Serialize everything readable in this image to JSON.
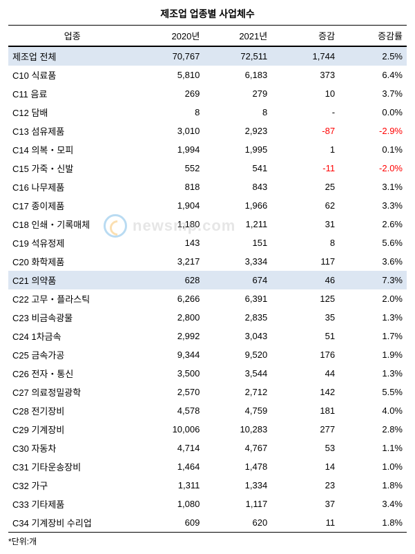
{
  "title": "제조업 업종별 사업체수",
  "headers": {
    "category": "업종",
    "y2020": "2020년",
    "y2021": "2021년",
    "diff": "증감",
    "rate": "증감률"
  },
  "rows": [
    {
      "cat": "제조업 전체",
      "y20": "70,767",
      "y21": "72,511",
      "diff": "1,744",
      "rate": "2.5%",
      "hl": true,
      "negDiff": false,
      "negRate": false
    },
    {
      "cat": "C10 식료품",
      "y20": "5,810",
      "y21": "6,183",
      "diff": "373",
      "rate": "6.4%",
      "hl": false,
      "negDiff": false,
      "negRate": false
    },
    {
      "cat": "C11 음료",
      "y20": "269",
      "y21": "279",
      "diff": "10",
      "rate": "3.7%",
      "hl": false,
      "negDiff": false,
      "negRate": false
    },
    {
      "cat": "C12 담배",
      "y20": "8",
      "y21": "8",
      "diff": "-",
      "rate": "0.0%",
      "hl": false,
      "negDiff": false,
      "negRate": false
    },
    {
      "cat": "C13 섬유제품",
      "y20": "3,010",
      "y21": "2,923",
      "diff": "-87",
      "rate": "-2.9%",
      "hl": false,
      "negDiff": true,
      "negRate": true
    },
    {
      "cat": "C14 의복・모피",
      "y20": "1,994",
      "y21": "1,995",
      "diff": "1",
      "rate": "0.1%",
      "hl": false,
      "negDiff": false,
      "negRate": false
    },
    {
      "cat": "C15 가죽・신발",
      "y20": "552",
      "y21": "541",
      "diff": "-11",
      "rate": "-2.0%",
      "hl": false,
      "negDiff": true,
      "negRate": true
    },
    {
      "cat": "C16 나무제품",
      "y20": "818",
      "y21": "843",
      "diff": "25",
      "rate": "3.1%",
      "hl": false,
      "negDiff": false,
      "negRate": false
    },
    {
      "cat": "C17 종이제품",
      "y20": "1,904",
      "y21": "1,966",
      "diff": "62",
      "rate": "3.3%",
      "hl": false,
      "negDiff": false,
      "negRate": false
    },
    {
      "cat": "C18 인쇄・기록매체",
      "y20": "1,180",
      "y21": "1,211",
      "diff": "31",
      "rate": "2.6%",
      "hl": false,
      "negDiff": false,
      "negRate": false
    },
    {
      "cat": "C19 석유정제",
      "y20": "143",
      "y21": "151",
      "diff": "8",
      "rate": "5.6%",
      "hl": false,
      "negDiff": false,
      "negRate": false
    },
    {
      "cat": "C20 화학제품",
      "y20": "3,217",
      "y21": "3,334",
      "diff": "117",
      "rate": "3.6%",
      "hl": false,
      "negDiff": false,
      "negRate": false
    },
    {
      "cat": "C21 의약품",
      "y20": "628",
      "y21": "674",
      "diff": "46",
      "rate": "7.3%",
      "hl": true,
      "negDiff": false,
      "negRate": false
    },
    {
      "cat": "C22 고무・플라스틱",
      "y20": "6,266",
      "y21": "6,391",
      "diff": "125",
      "rate": "2.0%",
      "hl": false,
      "negDiff": false,
      "negRate": false
    },
    {
      "cat": "C23 비금속광물",
      "y20": "2,800",
      "y21": "2,835",
      "diff": "35",
      "rate": "1.3%",
      "hl": false,
      "negDiff": false,
      "negRate": false
    },
    {
      "cat": "C24 1차금속",
      "y20": "2,992",
      "y21": "3,043",
      "diff": "51",
      "rate": "1.7%",
      "hl": false,
      "negDiff": false,
      "negRate": false
    },
    {
      "cat": "C25 금속가공",
      "y20": "9,344",
      "y21": "9,520",
      "diff": "176",
      "rate": "1.9%",
      "hl": false,
      "negDiff": false,
      "negRate": false
    },
    {
      "cat": "C26 전자・통신",
      "y20": "3,500",
      "y21": "3,544",
      "diff": "44",
      "rate": "1.3%",
      "hl": false,
      "negDiff": false,
      "negRate": false
    },
    {
      "cat": "C27 의료정밀광학",
      "y20": "2,570",
      "y21": "2,712",
      "diff": "142",
      "rate": "5.5%",
      "hl": false,
      "negDiff": false,
      "negRate": false
    },
    {
      "cat": "C28 전기장비",
      "y20": "4,578",
      "y21": "4,759",
      "diff": "181",
      "rate": "4.0%",
      "hl": false,
      "negDiff": false,
      "negRate": false
    },
    {
      "cat": "C29 기계장비",
      "y20": "10,006",
      "y21": "10,283",
      "diff": "277",
      "rate": "2.8%",
      "hl": false,
      "negDiff": false,
      "negRate": false
    },
    {
      "cat": "C30 자동차",
      "y20": "4,714",
      "y21": "4,767",
      "diff": "53",
      "rate": "1.1%",
      "hl": false,
      "negDiff": false,
      "negRate": false
    },
    {
      "cat": "C31 기타운송장비",
      "y20": "1,464",
      "y21": "1,478",
      "diff": "14",
      "rate": "1.0%",
      "hl": false,
      "negDiff": false,
      "negRate": false
    },
    {
      "cat": "C32 가구",
      "y20": "1,311",
      "y21": "1,334",
      "diff": "23",
      "rate": "1.8%",
      "hl": false,
      "negDiff": false,
      "negRate": false
    },
    {
      "cat": "C33 기타제품",
      "y20": "1,080",
      "y21": "1,117",
      "diff": "37",
      "rate": "3.4%",
      "hl": false,
      "negDiff": false,
      "negRate": false
    },
    {
      "cat": "C34 기계장비 수리업",
      "y20": "609",
      "y21": "620",
      "diff": "11",
      "rate": "1.8%",
      "hl": false,
      "negDiff": false,
      "negRate": false
    }
  ],
  "footnote": "*단위:개",
  "watermark": "newsmp.com"
}
